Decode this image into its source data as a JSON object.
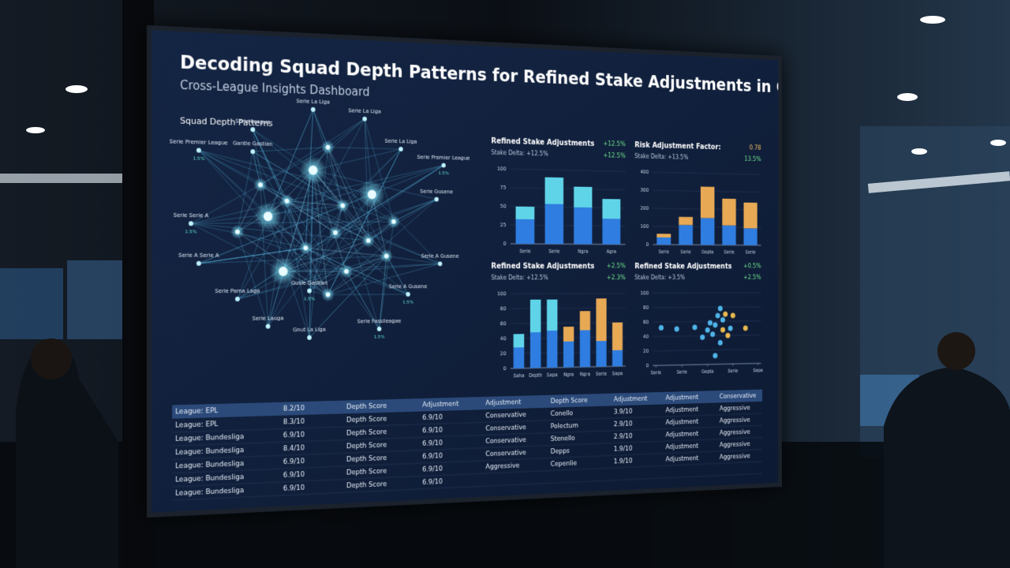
{
  "header": {
    "title": "Decoding Squad Depth Patterns for Refined Stake Adjustments in Cross-League Markets",
    "subtitle": "Cross-League Insights Dashboard"
  },
  "network": {
    "title": "Squad Depth Patterns",
    "nodes": [
      {
        "label": "Serie La Liga"
      },
      {
        "label": "Serie La Liga"
      },
      {
        "label": "Serie League"
      },
      {
        "label": "Serie La Liga"
      },
      {
        "label": "Serie Premier League",
        "sub": "1.5%"
      },
      {
        "label": "Serie Premier League",
        "sub": "1.5%"
      },
      {
        "label": "Gantie Gastian"
      },
      {
        "label": "Serie Serie A",
        "sub": "1.5%"
      },
      {
        "label": "Serie Gusene"
      },
      {
        "label": "Serie A Serie A"
      },
      {
        "label": "Serie A Gusene"
      },
      {
        "label": "Serie Pama Laga"
      },
      {
        "label": "Gusie Gastian",
        "sub": "1.5%"
      },
      {
        "label": "Serie A Gusene",
        "sub": "1.5%"
      },
      {
        "label": "Serie Lauga"
      },
      {
        "label": "Serie Fassileagae",
        "sub": "1.5%"
      },
      {
        "label": "Gnut La Liga"
      }
    ]
  },
  "chart_data": [
    {
      "type": "bar",
      "title": "Refined Stake Adjustments",
      "subtitle": "Stake Delta: +12.5%",
      "badges": [
        "+12.5%",
        "+12.5%"
      ],
      "categories": [
        "Serie",
        "Serie",
        "Ngra",
        "Agra"
      ],
      "series": [
        {
          "color": "#2f7de0",
          "values": [
            33,
            54,
            50,
            35
          ]
        },
        {
          "color": "#5fd4e8",
          "values": [
            17,
            36,
            28,
            27
          ]
        }
      ],
      "ylim": [
        0,
        100
      ],
      "yticks": [
        0,
        25,
        50,
        75,
        100
      ]
    },
    {
      "type": "bar",
      "title": "Risk Adjustment Factor:",
      "subtitle": "Stake Delta: +13.5%",
      "badges": [
        "0.78",
        "13.5%"
      ],
      "categories": [
        "Serie",
        "Serie",
        "Gepta",
        "Serie",
        "Serie"
      ],
      "series": [
        {
          "color": "#2f7de0",
          "values": [
            40,
            110,
            150,
            110,
            95
          ]
        },
        {
          "color": "#e8a955",
          "values": [
            20,
            45,
            175,
            150,
            145
          ]
        }
      ],
      "ylim": [
        0,
        400
      ],
      "yticks": [
        0,
        100,
        200,
        300,
        400
      ]
    },
    {
      "type": "bar",
      "title": "Refined Stake Adjustments",
      "subtitle": "Stake Delta: +12.5%",
      "badges": [
        "+2.5%",
        "+2.3%"
      ],
      "categories": [
        "Saha",
        "Depth",
        "Sapa",
        "Ngra",
        "Ngra",
        "Serie",
        "Sapa"
      ],
      "series": [
        {
          "color": "#2f7de0",
          "values": [
            28,
            48,
            50,
            35,
            50,
            35,
            22
          ]
        },
        {
          "color": "#5fd4e8",
          "values": [
            18,
            44,
            42,
            0,
            0,
            0,
            0
          ]
        },
        {
          "color": "#e8a955",
          "values": [
            0,
            0,
            0,
            20,
            26,
            58,
            38
          ]
        }
      ],
      "ylim": [
        0,
        100
      ],
      "yticks": [
        0,
        20,
        40,
        60,
        80,
        100
      ]
    },
    {
      "type": "scatter",
      "title": "Refined Stake Adjustments",
      "subtitle": "Stake Delta: +3.5%",
      "badges": [
        "+0.5%",
        "+2.5%"
      ],
      "series": [
        {
          "color": "#4fb3e8",
          "x": [
            0.2,
            0.8,
            1.5,
            1.8,
            2.0,
            2.1,
            2.2,
            2.3,
            2.4,
            2.5,
            2.6,
            2.9,
            2.5,
            2.3
          ],
          "y": [
            52,
            50,
            52,
            38,
            48,
            58,
            42,
            55,
            68,
            78,
            62,
            50,
            30,
            12
          ]
        },
        {
          "color": "#e8b84f",
          "x": [
            2.7,
            3.0,
            3.5,
            2.8,
            2.6
          ],
          "y": [
            70,
            68,
            50,
            40,
            48
          ]
        }
      ],
      "xlim": [
        0,
        4
      ],
      "xticks": [
        {
          "value": 0,
          "label": "Serie"
        },
        {
          "value": 1,
          "label": "Serie"
        },
        {
          "value": 2,
          "label": "Gepta"
        },
        {
          "value": 3,
          "label": "Serie"
        },
        {
          "value": 4,
          "label": "Sapa"
        }
      ],
      "ylim": [
        0,
        100
      ],
      "yticks": [
        0,
        20,
        40,
        60,
        80,
        100
      ]
    }
  ],
  "table": {
    "header": [
      "League: EPL",
      "8.2/10",
      "Depth Score",
      "Adjustment",
      "Adjustment",
      "Depth Score",
      "Adjustment",
      "Adjustment",
      "Conservative"
    ],
    "rows": [
      [
        "League: EPL",
        "8.3/10",
        "Depth Score",
        "6.9/10",
        "Conservative",
        "Conello",
        "3.9/10",
        "Adjustment",
        "Aggressive"
      ],
      [
        "League: Bundesliga",
        "6.9/10",
        "Depth Score",
        "6.9/10",
        "Conservative",
        "Polectum",
        "2.9/10",
        "Adjustment",
        "Aggressive"
      ],
      [
        "League: Bundesliga",
        "8.4/10",
        "Depth Score",
        "6.9/10",
        "Conservative",
        "Stenello",
        "2.9/10",
        "Adjustment",
        "Aggressive"
      ],
      [
        "League: Bundesliga",
        "6.9/10",
        "Depth Score",
        "6.9/10",
        "Conservative",
        "Depps",
        "1.9/10",
        "Adjustment",
        "Aggressive"
      ],
      [
        "League: Bundesliga",
        "6.9/10",
        "Depth Score",
        "6.9/10",
        "Aggressive",
        "Cepenlie",
        "1.9/10",
        "Adjustment",
        "Aggressive"
      ],
      [
        "League: Bundesliga",
        "6.9/10",
        "Depth Score",
        "6.9/10"
      ]
    ]
  }
}
